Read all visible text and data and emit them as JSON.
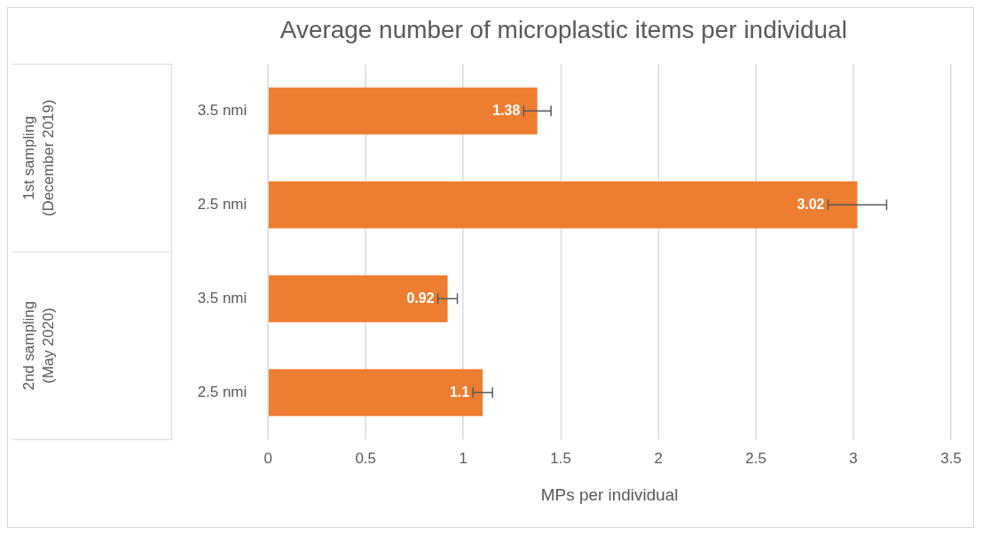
{
  "chart_data": {
    "type": "bar",
    "orientation": "horizontal",
    "title": "Average number of microplastic items per individual",
    "xlabel": "MPs per individual",
    "categories": [
      "3.5 nmi",
      "2.5 nmi",
      "3.5 nmi",
      "2.5 nmi"
    ],
    "values": [
      1.38,
      3.02,
      0.92,
      1.1
    ],
    "errors": [
      0.07,
      0.15,
      0.05,
      0.05
    ],
    "color": "#ed7d31",
    "xlim": [
      0,
      3.5
    ],
    "xticks": [
      0,
      0.5,
      1,
      1.5,
      2,
      2.5,
      3,
      3.5
    ],
    "grid": "x",
    "data_labels": true,
    "legend": false,
    "annotations": [
      "1st sampling\n(December 2019)",
      "2nd sampling\n(May 2020)"
    ]
  }
}
